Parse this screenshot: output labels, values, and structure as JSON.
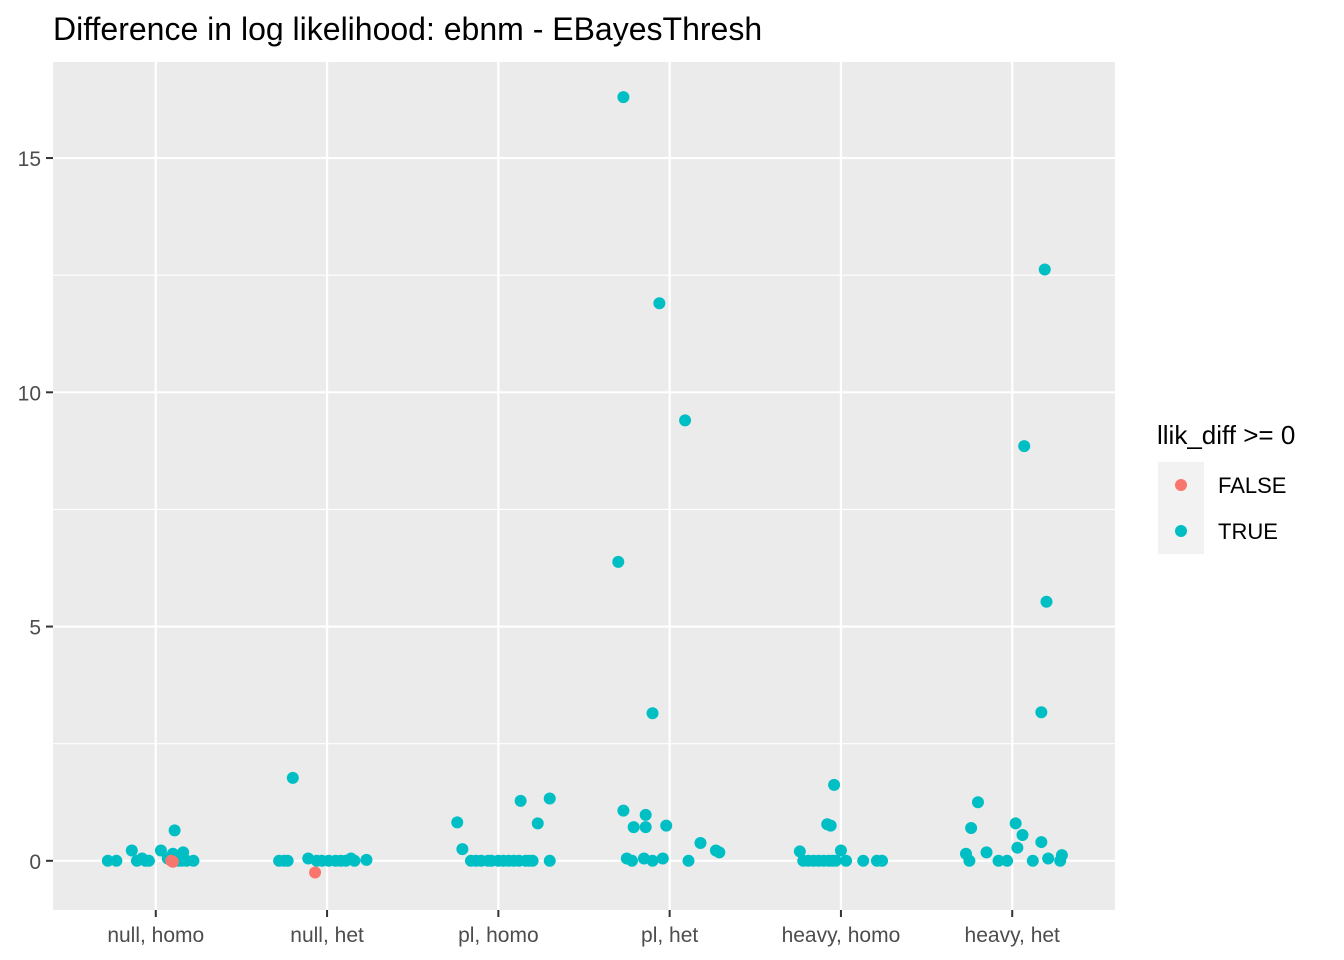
{
  "chart_data": {
    "type": "scatter",
    "title": "Difference in log likelihood: ebnm - EBayesThresh",
    "xlabel": "",
    "ylabel": "",
    "categories": [
      "null, homo",
      "null, het",
      "pl, homo",
      "pl, het",
      "heavy, homo",
      "heavy, het"
    ],
    "ylim": [
      -1.05,
      17.05
    ],
    "y_ticks": [
      0,
      5,
      10,
      15
    ],
    "y_tick_labels": [
      "0",
      "5",
      "10",
      "15"
    ],
    "grid": true,
    "legend": {
      "title": "llik_diff >= 0",
      "placement": "right",
      "entries": [
        {
          "label": "FALSE",
          "color": "#F8766D"
        },
        {
          "label": "TRUE",
          "color": "#00BFC4"
        }
      ]
    },
    "colors": {
      "panel": "#EBEBEB",
      "grid": "#FFFFFF",
      "FALSE": "#F8766D",
      "TRUE": "#00BFC4"
    },
    "series": [
      {
        "name": "TRUE",
        "points": [
          {
            "x": 0.72,
            "y": 0.0
          },
          {
            "x": 0.77,
            "y": 0.0
          },
          {
            "x": 0.86,
            "y": 0.22
          },
          {
            "x": 0.89,
            "y": 0.0
          },
          {
            "x": 0.92,
            "y": 0.05
          },
          {
            "x": 0.94,
            "y": 0.0
          },
          {
            "x": 0.96,
            "y": 0.0
          },
          {
            "x": 1.03,
            "y": 0.22
          },
          {
            "x": 1.07,
            "y": 0.05
          },
          {
            "x": 1.1,
            "y": 0.15
          },
          {
            "x": 1.11,
            "y": 0.65
          },
          {
            "x": 1.13,
            "y": 0.0
          },
          {
            "x": 1.15,
            "y": 0.0
          },
          {
            "x": 1.16,
            "y": 0.18
          },
          {
            "x": 1.18,
            "y": 0.0
          },
          {
            "x": 1.22,
            "y": 0.0
          },
          {
            "x": 1.72,
            "y": 0.0
          },
          {
            "x": 1.75,
            "y": 0.0
          },
          {
            "x": 1.77,
            "y": 0.0
          },
          {
            "x": 1.8,
            "y": 1.77
          },
          {
            "x": 1.89,
            "y": 0.05
          },
          {
            "x": 1.94,
            "y": 0.0
          },
          {
            "x": 1.97,
            "y": 0.0
          },
          {
            "x": 2.01,
            "y": 0.0
          },
          {
            "x": 2.05,
            "y": 0.0
          },
          {
            "x": 2.08,
            "y": 0.0
          },
          {
            "x": 2.11,
            "y": 0.0
          },
          {
            "x": 2.14,
            "y": 0.05
          },
          {
            "x": 2.16,
            "y": 0.0
          },
          {
            "x": 2.23,
            "y": 0.02
          },
          {
            "x": 2.76,
            "y": 0.82
          },
          {
            "x": 2.79,
            "y": 0.25
          },
          {
            "x": 2.84,
            "y": 0.0
          },
          {
            "x": 2.87,
            "y": 0.0
          },
          {
            "x": 2.9,
            "y": 0.0
          },
          {
            "x": 2.94,
            "y": 0.0
          },
          {
            "x": 2.96,
            "y": 0.0
          },
          {
            "x": 3.0,
            "y": 0.0
          },
          {
            "x": 3.03,
            "y": 0.0
          },
          {
            "x": 3.06,
            "y": 0.0
          },
          {
            "x": 3.09,
            "y": 0.0
          },
          {
            "x": 3.12,
            "y": 0.0
          },
          {
            "x": 3.13,
            "y": 1.28
          },
          {
            "x": 3.16,
            "y": 0.0
          },
          {
            "x": 3.18,
            "y": 0.0
          },
          {
            "x": 3.2,
            "y": 0.0
          },
          {
            "x": 3.23,
            "y": 0.8
          },
          {
            "x": 3.3,
            "y": 1.33
          },
          {
            "x": 3.3,
            "y": 0.0
          },
          {
            "x": 3.7,
            "y": 6.38
          },
          {
            "x": 3.73,
            "y": 16.3
          },
          {
            "x": 3.73,
            "y": 1.07
          },
          {
            "x": 3.75,
            "y": 0.05
          },
          {
            "x": 3.78,
            "y": 0.0
          },
          {
            "x": 3.79,
            "y": 0.72
          },
          {
            "x": 3.85,
            "y": 0.05
          },
          {
            "x": 3.86,
            "y": 0.98
          },
          {
            "x": 3.86,
            "y": 0.72
          },
          {
            "x": 3.9,
            "y": 0.0
          },
          {
            "x": 3.9,
            "y": 3.15
          },
          {
            "x": 3.94,
            "y": 11.9
          },
          {
            "x": 3.96,
            "y": 0.05
          },
          {
            "x": 3.98,
            "y": 0.75
          },
          {
            "x": 4.09,
            "y": 9.4
          },
          {
            "x": 4.11,
            "y": 0.0
          },
          {
            "x": 4.18,
            "y": 0.38
          },
          {
            "x": 4.27,
            "y": 0.22
          },
          {
            "x": 4.29,
            "y": 0.18
          },
          {
            "x": 4.76,
            "y": 0.2
          },
          {
            "x": 4.78,
            "y": 0.0
          },
          {
            "x": 4.81,
            "y": 0.0
          },
          {
            "x": 4.84,
            "y": 0.0
          },
          {
            "x": 4.87,
            "y": 0.0
          },
          {
            "x": 4.9,
            "y": 0.0
          },
          {
            "x": 4.92,
            "y": 0.78
          },
          {
            "x": 4.93,
            "y": 0.0
          },
          {
            "x": 4.94,
            "y": 0.75
          },
          {
            "x": 4.95,
            "y": 0.0
          },
          {
            "x": 4.96,
            "y": 1.62
          },
          {
            "x": 4.97,
            "y": 0.0
          },
          {
            "x": 5.0,
            "y": 0.22
          },
          {
            "x": 5.03,
            "y": 0.0
          },
          {
            "x": 5.13,
            "y": 0.0
          },
          {
            "x": 5.21,
            "y": 0.0
          },
          {
            "x": 5.24,
            "y": 0.0
          },
          {
            "x": 5.73,
            "y": 0.15
          },
          {
            "x": 5.75,
            "y": 0.0
          },
          {
            "x": 5.76,
            "y": 0.7
          },
          {
            "x": 5.8,
            "y": 1.25
          },
          {
            "x": 5.85,
            "y": 0.18
          },
          {
            "x": 5.92,
            "y": 0.0
          },
          {
            "x": 5.97,
            "y": 0.0
          },
          {
            "x": 6.02,
            "y": 0.8
          },
          {
            "x": 6.03,
            "y": 0.28
          },
          {
            "x": 6.06,
            "y": 0.55
          },
          {
            "x": 6.07,
            "y": 8.85
          },
          {
            "x": 6.12,
            "y": 0.0
          },
          {
            "x": 6.17,
            "y": 3.17
          },
          {
            "x": 6.17,
            "y": 0.4
          },
          {
            "x": 6.19,
            "y": 12.62
          },
          {
            "x": 6.2,
            "y": 5.53
          },
          {
            "x": 6.21,
            "y": 0.05
          },
          {
            "x": 6.28,
            "y": 0.0
          },
          {
            "x": 6.29,
            "y": 0.12
          }
        ]
      },
      {
        "name": "FALSE",
        "points": [
          {
            "x": 1.09,
            "y": 0.0
          },
          {
            "x": 1.1,
            "y": -0.02
          },
          {
            "x": 1.93,
            "y": -0.25
          }
        ]
      }
    ]
  }
}
